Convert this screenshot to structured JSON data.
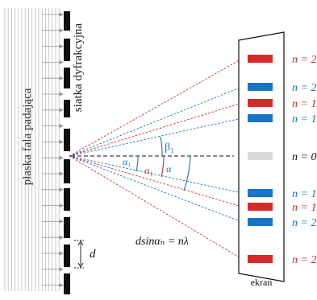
{
  "labels": {
    "incident_wave": "płaska fala padająca",
    "grating": "siatka dyfrakcyjna",
    "screen": "ekran",
    "slit_spacing": "d",
    "formula": "dsinαₙ = nλ"
  },
  "angles": {
    "alpha_blue": "α₁",
    "alpha_red": "α₁",
    "alpha_blue_2": "α",
    "beta": "β₁"
  },
  "orders": [
    {
      "order": "n = 2",
      "color": "red"
    },
    {
      "order": "n = 2",
      "color": "blue"
    },
    {
      "order": "n = 1",
      "color": "red"
    },
    {
      "order": "n = 1",
      "color": "blue"
    },
    {
      "order": "n = 0",
      "color": "gray"
    },
    {
      "order": "n = 1",
      "color": "blue"
    },
    {
      "order": "n = 1",
      "color": "red"
    },
    {
      "order": "n = 2",
      "color": "blue"
    },
    {
      "order": "n = 2",
      "color": "red"
    }
  ],
  "colors": {
    "red": "#d62a2a",
    "blue": "#1a74c4",
    "gray": "#d9d9d9",
    "black": "#111111",
    "wave": "#b9b9b9"
  }
}
